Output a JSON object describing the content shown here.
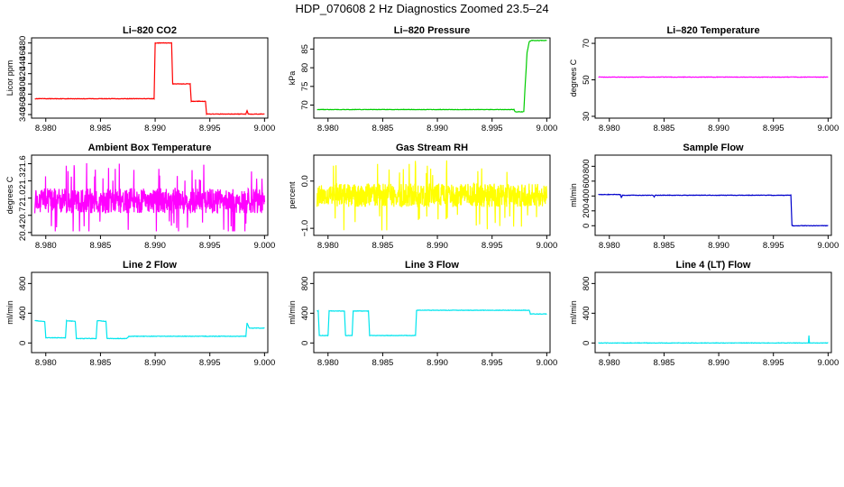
{
  "title": "HDP_070608  2 Hz Diagnostics Zoomed 23.5–24",
  "x_tick_labels": [
    "8.980",
    "8.985",
    "8.990",
    "8.995",
    "9.000"
  ],
  "chart_data": [
    {
      "type": "line",
      "title": "Li–820 CO2",
      "ylabel": "Licor ppm",
      "color": "#ff0000",
      "xlim": [
        8.9787,
        9.0003
      ],
      "ylim": [
        333,
        490
      ],
      "y_ticks": [
        "340",
        "360",
        "380",
        "400",
        "420",
        "440",
        "460",
        "480"
      ],
      "x": [
        8.979,
        8.9899,
        8.99,
        8.9915,
        8.9916,
        8.9932,
        8.9933,
        8.9946,
        8.9947,
        8.9983,
        8.9984,
        8.9985,
        9.0
      ],
      "values": [
        371,
        371,
        480,
        480,
        400,
        400,
        366,
        366,
        341,
        341,
        348,
        341,
        341
      ]
    },
    {
      "type": "line",
      "title": "Li–820 Pressure",
      "ylabel": "kPa",
      "color": "#00cc00",
      "xlim": [
        8.9787,
        9.0003
      ],
      "ylim": [
        66.5,
        88
      ],
      "y_ticks": [
        "70",
        "75",
        "80",
        "85"
      ],
      "x": [
        8.979,
        8.997,
        8.9971,
        8.9979,
        8.998,
        8.9982,
        8.9984,
        8.9986,
        9.0
      ],
      "values": [
        68.8,
        68.8,
        68.2,
        68.2,
        74,
        84,
        87,
        87.3,
        87.3
      ]
    },
    {
      "type": "line",
      "title": "Li–820 Temperature",
      "ylabel": "degrees C",
      "color": "#ff00ff",
      "xlim": [
        8.9787,
        9.0003
      ],
      "ylim": [
        29,
        73
      ],
      "y_ticks": [
        "30",
        "50",
        "70"
      ],
      "x": [
        8.979,
        9.0
      ],
      "values": [
        51.5,
        51.5
      ]
    },
    {
      "type": "line",
      "title": "Ambient Box Temperature",
      "ylabel": "degrees C",
      "color": "#ff00ff",
      "xlim": [
        8.9787,
        9.0003
      ],
      "ylim": [
        20.35,
        21.75
      ],
      "y_ticks": [
        "20.4",
        "20.7",
        "21.0",
        "21.3",
        "21.6"
      ],
      "noise": {
        "base": 20.95,
        "amplitude": 0.22,
        "min": 20.42,
        "max": 21.65
      }
    },
    {
      "type": "line",
      "title": "Gas Stream RH",
      "ylabel": "percent",
      "color": "#ffff00",
      "xlim": [
        8.9787,
        9.0003
      ],
      "ylim": [
        -1.15,
        0.55
      ],
      "y_ticks": [
        "−1.0",
        "0.0"
      ],
      "noise": {
        "base": -0.3,
        "amplitude": 0.25,
        "min": -1.1,
        "max": 0.45
      }
    },
    {
      "type": "line",
      "title": "Sample Flow",
      "ylabel": "ml/min",
      "color": "#0000cc",
      "xlim": [
        8.9787,
        9.0003
      ],
      "ylim": [
        -130,
        950
      ],
      "y_ticks": [
        "0",
        "200",
        "400",
        "600",
        "800"
      ],
      "x": [
        8.979,
        8.981,
        8.9811,
        8.9812,
        8.984,
        8.9841,
        8.9842,
        8.9966,
        8.9967,
        9.0
      ],
      "values": [
        420,
        420,
        380,
        410,
        410,
        390,
        410,
        410,
        0,
        0
      ]
    },
    {
      "type": "line",
      "title": "Line 2 Flow",
      "ylabel": "ml/min",
      "color": "#00e5ee",
      "xlim": [
        8.9787,
        9.0003
      ],
      "ylim": [
        -130,
        950
      ],
      "y_ticks": [
        "0",
        "400",
        "800"
      ],
      "x": [
        8.979,
        8.9791,
        8.9799,
        8.98,
        8.9818,
        8.9819,
        8.9827,
        8.9828,
        8.9846,
        8.9847,
        8.9855,
        8.9856,
        8.9874,
        8.9876,
        8.9983,
        8.9984,
        8.9986,
        9.0
      ],
      "values": [
        300,
        300,
        290,
        70,
        70,
        300,
        290,
        60,
        60,
        300,
        290,
        60,
        60,
        90,
        90,
        270,
        200,
        200
      ]
    },
    {
      "type": "line",
      "title": "Line 3 Flow",
      "ylabel": "ml/min",
      "color": "#00e5ee",
      "xlim": [
        8.9787,
        9.0003
      ],
      "ylim": [
        -130,
        950
      ],
      "y_ticks": [
        "0",
        "400",
        "800"
      ],
      "x": [
        8.979,
        8.9791,
        8.9792,
        8.98,
        8.9801,
        8.9815,
        8.9816,
        8.9822,
        8.9823,
        8.9837,
        8.9838,
        8.9848,
        8.9849,
        8.988,
        8.9881,
        8.9984,
        8.9985,
        9.0
      ],
      "values": [
        430,
        430,
        100,
        100,
        430,
        430,
        100,
        100,
        430,
        430,
        100,
        100,
        100,
        100,
        440,
        440,
        390,
        390
      ]
    },
    {
      "type": "line",
      "title": "Line 4 (LT) Flow",
      "ylabel": "ml/min",
      "color": "#00e5ee",
      "xlim": [
        8.9787,
        9.0003
      ],
      "ylim": [
        -130,
        950
      ],
      "y_ticks": [
        "0",
        "400",
        "800"
      ],
      "x": [
        8.979,
        8.9982,
        8.99825,
        8.9983,
        9.0
      ],
      "values": [
        0,
        0,
        100,
        0,
        0
      ]
    }
  ]
}
